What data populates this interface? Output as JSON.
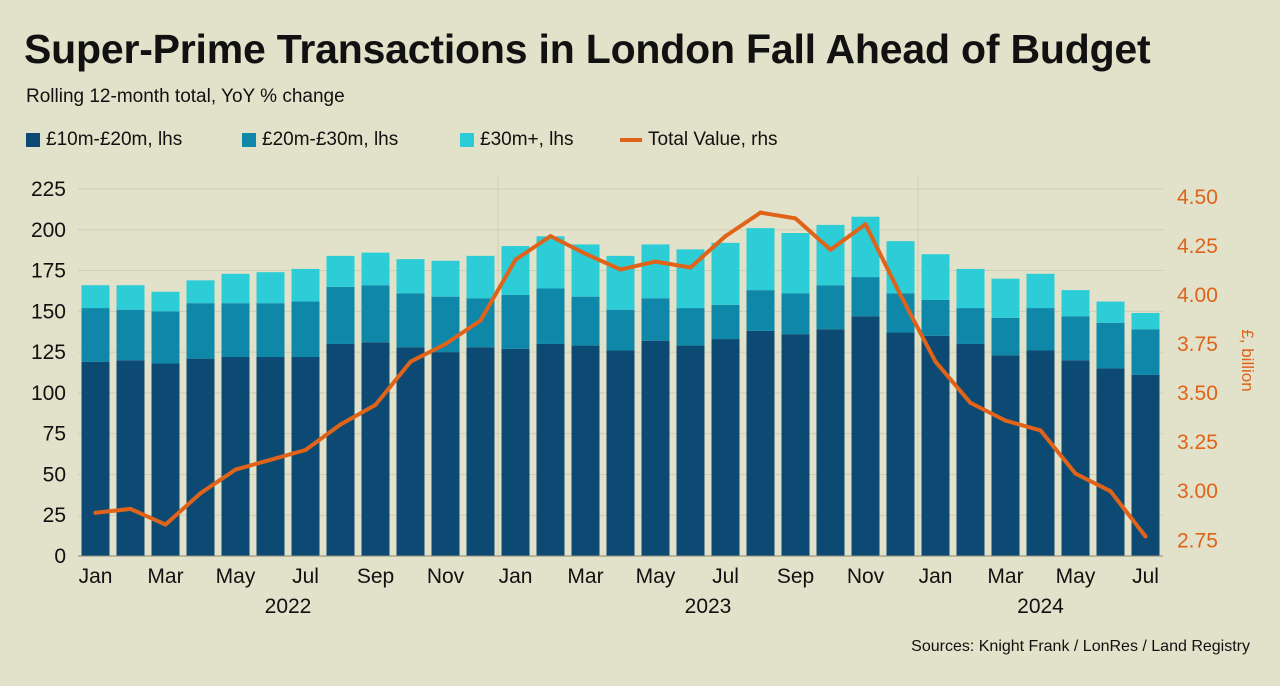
{
  "title": "Super-Prime Transactions in London Fall Ahead of Budget",
  "subtitle": "Rolling 12-month total, YoY % change",
  "source": "Sources: Knight Frank / LonRes / Land Registry",
  "legend": [
    {
      "label": "£10m-£20m, lhs",
      "color": "#0d4a73",
      "kind": "box"
    },
    {
      "label": "£20m-£30m, lhs",
      "color": "#0e87a8",
      "kind": "box"
    },
    {
      "label": "£30m+, lhs",
      "color": "#2ccdd6",
      "kind": "box"
    },
    {
      "label": "Total Value, rhs",
      "color": "#e0631a",
      "kind": "line"
    }
  ],
  "chart_data": {
    "type": "bar",
    "stacked": true,
    "categories": [
      "Jan 2022",
      "Feb 2022",
      "Mar 2022",
      "Apr 2022",
      "May 2022",
      "Jun 2022",
      "Jul 2022",
      "Aug 2022",
      "Sep 2022",
      "Oct 2022",
      "Nov 2022",
      "Dec 2022",
      "Jan 2023",
      "Feb 2023",
      "Mar 2023",
      "Apr 2023",
      "May 2023",
      "Jun 2023",
      "Jul 2023",
      "Aug 2023",
      "Sep 2023",
      "Oct 2023",
      "Nov 2023",
      "Dec 2023",
      "Jan 2024",
      "Feb 2024",
      "Mar 2024",
      "Apr 2024",
      "May 2024",
      "Jun 2024",
      "Jul 2024"
    ],
    "x_tick_labels": [
      "Jan",
      "",
      "Mar",
      "",
      "May",
      "",
      "Jul",
      "",
      "Sep",
      "",
      "Nov",
      "",
      "Jan",
      "",
      "Mar",
      "",
      "May",
      "",
      "Jul",
      "",
      "Sep",
      "",
      "Nov",
      "",
      "Jan",
      "",
      "Mar",
      "",
      "May",
      "",
      "Jul"
    ],
    "year_labels": [
      {
        "label": "2022",
        "center_index": 5.5
      },
      {
        "label": "2023",
        "center_index": 17.5
      },
      {
        "label": "2024",
        "center_index": 27
      }
    ],
    "year_separators_after_index": [
      11,
      23
    ],
    "series": [
      {
        "name": "£10m-£20m, lhs",
        "color": "#0d4a73",
        "values": [
          119,
          120,
          118,
          121,
          122,
          122,
          122,
          130,
          131,
          128,
          125,
          128,
          127,
          130,
          129,
          126,
          132,
          129,
          133,
          138,
          136,
          139,
          147,
          137,
          135,
          130,
          123,
          126,
          120,
          115,
          111
        ]
      },
      {
        "name": "£20m-£30m, lhs",
        "color": "#0e87a8",
        "values": [
          33,
          31,
          32,
          34,
          33,
          33,
          34,
          35,
          35,
          33,
          34,
          30,
          33,
          34,
          30,
          25,
          26,
          23,
          21,
          25,
          25,
          27,
          24,
          24,
          22,
          22,
          23,
          26,
          27,
          28,
          28
        ]
      },
      {
        "name": "£30m+, lhs",
        "color": "#2ccdd6",
        "values": [
          14,
          15,
          12,
          14,
          18,
          19,
          20,
          19,
          20,
          21,
          22,
          26,
          30,
          32,
          32,
          33,
          33,
          36,
          38,
          38,
          37,
          37,
          37,
          32,
          28,
          24,
          24,
          21,
          16,
          13,
          10
        ]
      }
    ],
    "line_series": {
      "name": "Total Value, rhs",
      "color": "#e0631a",
      "axis": "right",
      "values": [
        2.89,
        2.91,
        2.83,
        2.99,
        3.11,
        3.16,
        3.21,
        3.34,
        3.44,
        3.66,
        3.75,
        3.87,
        4.18,
        4.3,
        4.21,
        4.13,
        4.17,
        4.14,
        4.3,
        4.42,
        4.39,
        4.23,
        4.36,
        4.0,
        3.66,
        3.45,
        3.36,
        3.31,
        3.09,
        3.0,
        2.77
      ]
    },
    "left_axis": {
      "ylim": [
        0,
        225
      ],
      "ticks": [
        "0",
        "25",
        "50",
        "75",
        "100",
        "125",
        "150",
        "175",
        "200",
        "225"
      ],
      "label": ""
    },
    "right_axis": {
      "ylim": [
        2.67,
        4.54
      ],
      "ticks": [
        "2.75",
        "3.00",
        "3.25",
        "3.50",
        "3.75",
        "4.00",
        "4.25",
        "4.50"
      ],
      "label": "£, billion",
      "color": "#e0631a"
    },
    "grid": true,
    "legend_placement": "top-left"
  }
}
